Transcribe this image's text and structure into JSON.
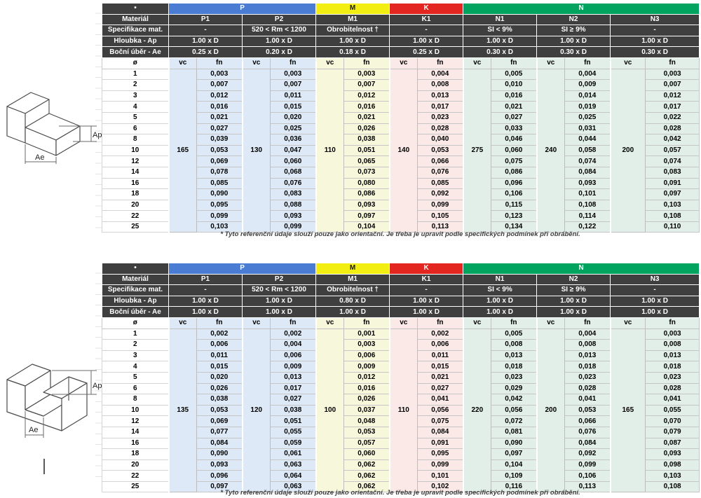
{
  "colors": {
    "header_dark": "#3f3f3f",
    "band_p": "#4a7cd4",
    "band_m": "#f2ee12",
    "band_k": "#e3261f",
    "band_n": "#00a45e",
    "tint_p": "#dde9f6",
    "tint_m": "#f7f7dc",
    "tint_k": "#fbe9e8",
    "tint_n": "#e2eee8"
  },
  "footnote": "* Tyto referenční údaje slouží pouze jako orientační. Je třeba je upravit podle specifických podmínek při obrábění.",
  "shared": {
    "corner_symbol": "•",
    "row_labels": {
      "material": "Materiál",
      "spec": "Specifikace mat.",
      "ap": "Hloubka - Ap",
      "ae": "Boční úběr - Ae"
    },
    "diameter_symbol": "ø",
    "vc_label": "vc",
    "fn_label": "fn",
    "bands": [
      {
        "label": "P",
        "span": 2,
        "color": "#4a7cd4",
        "text_color": "#ffffff"
      },
      {
        "label": "M",
        "span": 1,
        "color": "#f2ee12",
        "text_color": "#1a1a1a"
      },
      {
        "label": "K",
        "span": 1,
        "color": "#e3261f",
        "text_color": "#ffffff"
      },
      {
        "label": "N",
        "span": 3,
        "color": "#00a45e",
        "text_color": "#ffffff"
      }
    ],
    "diameters": [
      "1",
      "2",
      "3",
      "4",
      "5",
      "6",
      "8",
      "10",
      "12",
      "14",
      "16",
      "18",
      "20",
      "22",
      "25"
    ]
  },
  "tables": [
    {
      "groups": [
        {
          "name": "P1",
          "spec": "-",
          "ap": "1.00 x D",
          "ae": "0.25 x D",
          "tint": "#dde9f6",
          "vc": "165",
          "fn": [
            "0,003",
            "0,007",
            "0,012",
            "0,016",
            "0,021",
            "0,027",
            "0,039",
            "0,053",
            "0,069",
            "0,078",
            "0,085",
            "0,090",
            "0,095",
            "0,099",
            "0,103"
          ]
        },
        {
          "name": "P2",
          "spec": "520 < Rm < 1200",
          "ap": "1.00 x D",
          "ae": "0.20 x D",
          "tint": "#dde9f6",
          "vc": "130",
          "fn": [
            "0,003",
            "0,007",
            "0,011",
            "0,015",
            "0,020",
            "0,025",
            "0,036",
            "0,047",
            "0,060",
            "0,068",
            "0,076",
            "0,083",
            "0,088",
            "0,093",
            "0,099"
          ]
        },
        {
          "name": "M1",
          "spec": "Obrobitelnost †",
          "ap": "1.00 x D",
          "ae": "0.18 x D",
          "tint": "#f7f7dc",
          "vc": "110",
          "fn": [
            "0,003",
            "0,007",
            "0,012",
            "0,016",
            "0,021",
            "0,026",
            "0,038",
            "0,051",
            "0,065",
            "0,073",
            "0,080",
            "0,086",
            "0,093",
            "0,097",
            "0,104"
          ]
        },
        {
          "name": "K1",
          "spec": "-",
          "ap": "1.00 x D",
          "ae": "0.25 x D",
          "tint": "#fbe9e8",
          "vc": "140",
          "fn": [
            "0,004",
            "0,008",
            "0,013",
            "0,017",
            "0,023",
            "0,028",
            "0,040",
            "0,053",
            "0,066",
            "0,076",
            "0,085",
            "0,092",
            "0,099",
            "0,105",
            "0,113"
          ]
        },
        {
          "name": "N1",
          "spec": "SI < 9%",
          "ap": "1.00 x D",
          "ae": "0.30 x D",
          "tint": "#e2eee8",
          "vc": "275",
          "fn": [
            "0,005",
            "0,010",
            "0,016",
            "0,021",
            "0,027",
            "0,033",
            "0,046",
            "0,060",
            "0,075",
            "0,086",
            "0,096",
            "0,106",
            "0,115",
            "0,123",
            "0,134"
          ]
        },
        {
          "name": "N2",
          "spec": "SI ≥ 9%",
          "ap": "1.00 x D",
          "ae": "0.30 x D",
          "tint": "#e2eee8",
          "vc": "240",
          "fn": [
            "0,004",
            "0,009",
            "0,014",
            "0,019",
            "0,025",
            "0,031",
            "0,044",
            "0,058",
            "0,074",
            "0,084",
            "0,093",
            "0,101",
            "0,108",
            "0,114",
            "0,122"
          ]
        },
        {
          "name": "N3",
          "spec": "-",
          "ap": "1.00 x D",
          "ae": "0.30 x D",
          "tint": "#e2eee8",
          "vc": "200",
          "fn": [
            "0,003",
            "0,007",
            "0,012",
            "0,017",
            "0,022",
            "0,028",
            "0,042",
            "0,057",
            "0,074",
            "0,083",
            "0,091",
            "0,097",
            "0,103",
            "0,108",
            "0,110"
          ]
        }
      ]
    },
    {
      "groups": [
        {
          "name": "P1",
          "spec": "-",
          "ap": "1.00 x D",
          "ae": "1.00 x D",
          "tint": "#dde9f6",
          "vc": "135",
          "fn": [
            "0,002",
            "0,006",
            "0,011",
            "0,015",
            "0,020",
            "0,026",
            "0,038",
            "0,053",
            "0,069",
            "0,077",
            "0,084",
            "0,090",
            "0,093",
            "0,096",
            "0,097"
          ]
        },
        {
          "name": "P2",
          "spec": "520 < Rm < 1200",
          "ap": "1.00 x D",
          "ae": "1.00 x D",
          "tint": "#dde9f6",
          "vc": "120",
          "fn": [
            "0,002",
            "0,004",
            "0,006",
            "0,009",
            "0,013",
            "0,017",
            "0,027",
            "0,038",
            "0,051",
            "0,055",
            "0,059",
            "0,061",
            "0,063",
            "0,064",
            "0,063"
          ]
        },
        {
          "name": "M1",
          "spec": "Obrobitelnost †",
          "ap": "0.80 x D",
          "ae": "1.00 x D",
          "tint": "#f7f7dc",
          "vc": "100",
          "fn": [
            "0,001",
            "0,003",
            "0,006",
            "0,009",
            "0,012",
            "0,016",
            "0,026",
            "0,037",
            "0,048",
            "0,053",
            "0,057",
            "0,060",
            "0,062",
            "0,062",
            "0,062"
          ]
        },
        {
          "name": "K1",
          "spec": "-",
          "ap": "1.00 x D",
          "ae": "1.00 x D",
          "tint": "#fbe9e8",
          "vc": "110",
          "fn": [
            "0,002",
            "0,006",
            "0,011",
            "0,015",
            "0,021",
            "0,027",
            "0,041",
            "0,056",
            "0,075",
            "0,084",
            "0,091",
            "0,095",
            "0,099",
            "0,101",
            "0,102"
          ]
        },
        {
          "name": "N1",
          "spec": "SI < 9%",
          "ap": "1.00 x D",
          "ae": "1.00 x D",
          "tint": "#e2eee8",
          "vc": "220",
          "fn": [
            "0,005",
            "0,008",
            "0,013",
            "0,018",
            "0,023",
            "0,029",
            "0,042",
            "0,056",
            "0,072",
            "0,081",
            "0,090",
            "0,097",
            "0,104",
            "0,109",
            "0,116"
          ]
        },
        {
          "name": "N2",
          "spec": "SI ≥ 9%",
          "ap": "1.00 x D",
          "ae": "1.00 x D",
          "tint": "#e2eee8",
          "vc": "200",
          "fn": [
            "0,004",
            "0,008",
            "0,013",
            "0,018",
            "0,023",
            "0,028",
            "0,041",
            "0,053",
            "0,066",
            "0,076",
            "0,084",
            "0,092",
            "0,099",
            "0,106",
            "0,113"
          ]
        },
        {
          "name": "N3",
          "spec": "-",
          "ap": "1.00 x D",
          "ae": "1.00 x D",
          "tint": "#e2eee8",
          "vc": "165",
          "fn": [
            "0,003",
            "0,008",
            "0,013",
            "0,018",
            "0,023",
            "0,028",
            "0,041",
            "0,055",
            "0,070",
            "0,079",
            "0,087",
            "0,093",
            "0,098",
            "0,103",
            "0,108"
          ]
        }
      ]
    }
  ],
  "drawings": [
    {
      "ap_label": "Ap",
      "ae_label": "Ae"
    },
    {
      "ap_label": "Ap",
      "ae_label": "Ae"
    }
  ]
}
